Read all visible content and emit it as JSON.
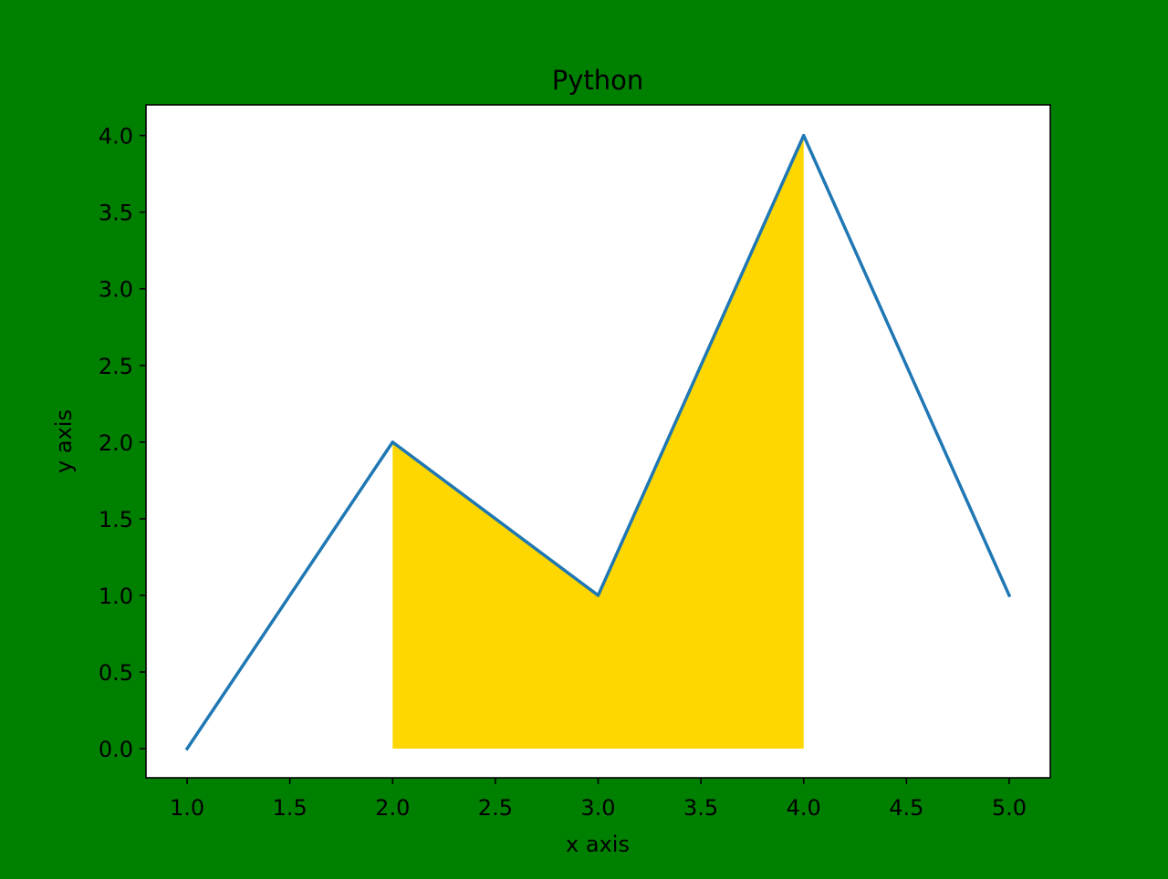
{
  "chart_data": {
    "type": "line",
    "title": "Python",
    "xlabel": "x axis",
    "ylabel": "y axis",
    "x": [
      1,
      2,
      3,
      4,
      5
    ],
    "series": [
      {
        "values": [
          0,
          2,
          1,
          4,
          1
        ],
        "color": "#1f77b4"
      }
    ],
    "fill_between": {
      "x_from": 2,
      "x_to": 4,
      "baseline": 0,
      "color": "#ffd700"
    },
    "xlim": [
      0.8,
      5.2
    ],
    "ylim": [
      -0.19,
      4.2
    ],
    "xticks": [
      1.0,
      1.5,
      2.0,
      2.5,
      3.0,
      3.5,
      4.0,
      4.5,
      5.0
    ],
    "xtick_labels": [
      "1.0",
      "1.5",
      "2.0",
      "2.5",
      "3.0",
      "3.5",
      "4.0",
      "4.5",
      "5.0"
    ],
    "yticks": [
      0.0,
      0.5,
      1.0,
      1.5,
      2.0,
      2.5,
      3.0,
      3.5,
      4.0
    ],
    "ytick_labels": [
      "0.0",
      "0.5",
      "1.0",
      "1.5",
      "2.0",
      "2.5",
      "3.0",
      "3.5",
      "4.0"
    ],
    "grid": false,
    "colors": {
      "figure_background": "#008000",
      "axes_background": "#ffffff"
    }
  }
}
